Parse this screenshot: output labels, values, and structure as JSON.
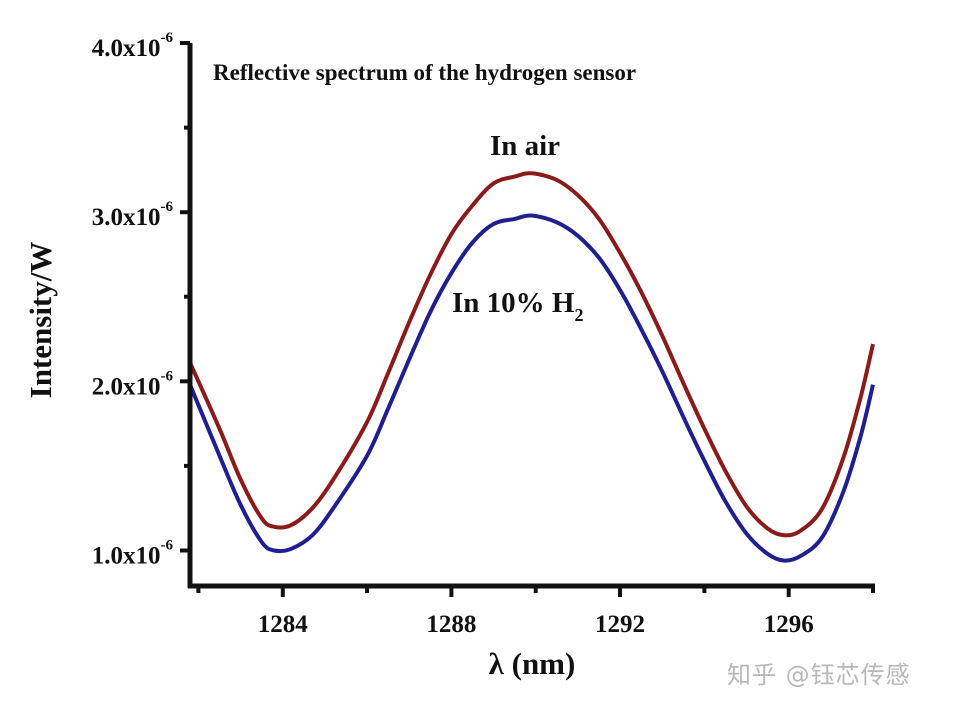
{
  "chart_data": {
    "type": "line",
    "title": "Reflective spectrum of the hydrogen sensor",
    "xlabel": "λ (nm)",
    "ylabel": "Intensity/W",
    "xlim": [
      1281.8,
      1298
    ],
    "ylim": [
      7.9e-07,
      4e-06
    ],
    "x_ticks": [
      {
        "value": 1282,
        "label": ""
      },
      {
        "value": 1284,
        "label": "1284"
      },
      {
        "value": 1286,
        "label": ""
      },
      {
        "value": 1288,
        "label": "1288"
      },
      {
        "value": 1290,
        "label": ""
      },
      {
        "value": 1292,
        "label": "1292"
      },
      {
        "value": 1294,
        "label": ""
      },
      {
        "value": 1296,
        "label": "1296"
      },
      {
        "value": 1298,
        "label": ""
      }
    ],
    "y_ticks": [
      {
        "value": 1e-06,
        "mantissa": "1.0x10",
        "exponent": "-6"
      },
      {
        "value": 1.5e-06,
        "mantissa": "",
        "exponent": ""
      },
      {
        "value": 2e-06,
        "mantissa": "2.0x10",
        "exponent": "-6"
      },
      {
        "value": 2.5e-06,
        "mantissa": "",
        "exponent": ""
      },
      {
        "value": 3e-06,
        "mantissa": "3.0x10",
        "exponent": "-6"
      },
      {
        "value": 3.5e-06,
        "mantissa": "",
        "exponent": ""
      },
      {
        "value": 4e-06,
        "mantissa": "4.0x10",
        "exponent": "-6"
      }
    ],
    "grid": false,
    "y_unit_scale": 1e-06,
    "series": [
      {
        "name": "In air",
        "color": "#8b1a1a",
        "x": [
          1281.8,
          1282.5,
          1283,
          1283.5,
          1283.8,
          1284.2,
          1284.7,
          1285.2,
          1286,
          1286.5,
          1287,
          1287.5,
          1288,
          1288.5,
          1289,
          1289.5,
          1289.9,
          1290.5,
          1291,
          1291.5,
          1292,
          1292.5,
          1293,
          1293.5,
          1294,
          1294.5,
          1295,
          1295.5,
          1295.9,
          1296.3,
          1296.8,
          1297.3,
          1297.7,
          1298
        ],
        "y": [
          2.11,
          1.72,
          1.42,
          1.19,
          1.14,
          1.15,
          1.25,
          1.42,
          1.76,
          2.05,
          2.35,
          2.63,
          2.87,
          3.04,
          3.17,
          3.21,
          3.23,
          3.19,
          3.1,
          2.96,
          2.76,
          2.53,
          2.27,
          1.99,
          1.72,
          1.47,
          1.26,
          1.13,
          1.09,
          1.12,
          1.25,
          1.55,
          1.9,
          2.22
        ]
      },
      {
        "name": "In 10% H2",
        "color": "#1f1f8f",
        "x": [
          1281.8,
          1282.5,
          1283,
          1283.5,
          1283.8,
          1284.2,
          1284.7,
          1285.2,
          1286,
          1286.5,
          1287,
          1287.5,
          1288,
          1288.5,
          1289,
          1289.5,
          1289.9,
          1290.5,
          1291,
          1291.5,
          1292,
          1292.5,
          1293,
          1293.5,
          1294,
          1294.5,
          1295,
          1295.5,
          1295.9,
          1296.3,
          1296.8,
          1297.3,
          1297.7,
          1298
        ],
        "y": [
          1.98,
          1.56,
          1.27,
          1.05,
          1.0,
          1.01,
          1.09,
          1.25,
          1.56,
          1.84,
          2.13,
          2.41,
          2.64,
          2.82,
          2.93,
          2.96,
          2.98,
          2.94,
          2.86,
          2.73,
          2.54,
          2.31,
          2.06,
          1.79,
          1.53,
          1.29,
          1.1,
          0.98,
          0.94,
          0.97,
          1.08,
          1.35,
          1.67,
          1.98
        ]
      }
    ],
    "annotations": [
      {
        "text": "In air",
        "series": "In air"
      },
      {
        "text_main": "In 10% H",
        "text_sub": "2",
        "series": "In 10% H2"
      }
    ]
  },
  "watermark": "知乎 @钰芯传感"
}
